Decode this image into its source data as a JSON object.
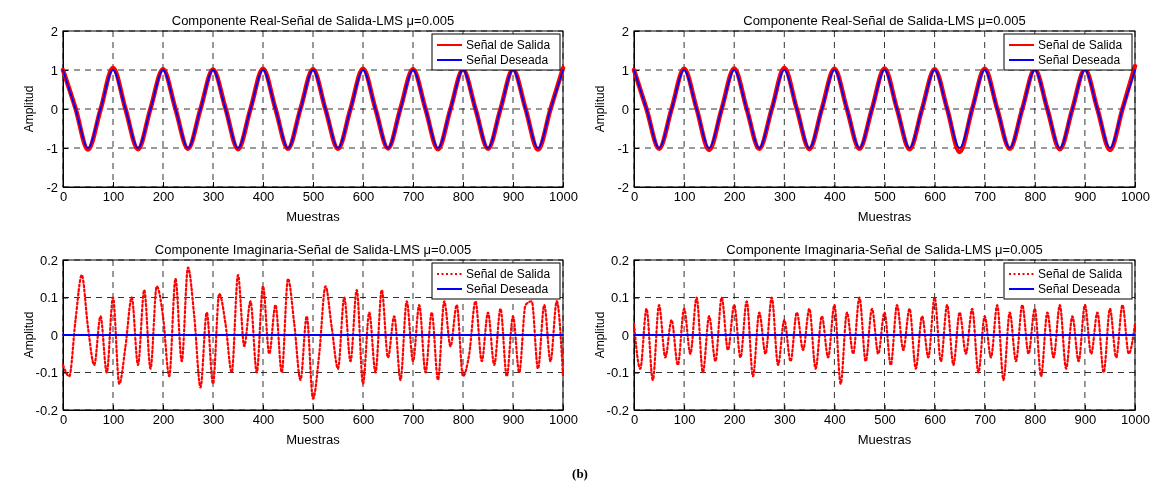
{
  "chart_data": [
    {
      "type": "line",
      "title": "Componente Real-Señal de Salida-LMS μ=0.005",
      "xlabel": "Muestras",
      "ylabel": "Amplitud",
      "xlim": [
        0,
        1000
      ],
      "xticks": [
        0,
        100,
        200,
        300,
        400,
        500,
        600,
        700,
        800,
        900,
        1000
      ],
      "ylim": [
        -2,
        2
      ],
      "yticks": [
        -2,
        -1,
        0,
        1,
        2
      ],
      "grid": true,
      "legend": "top right",
      "x": [
        0,
        25,
        50,
        75,
        100,
        125,
        150,
        175,
        200,
        225,
        250,
        275,
        300,
        325,
        350,
        375,
        400,
        425,
        450,
        475,
        500,
        525,
        550,
        575,
        600,
        625,
        650,
        675,
        700,
        725,
        750,
        775,
        800,
        825,
        850,
        875,
        900,
        925,
        950,
        975,
        1000
      ],
      "series": [
        {
          "name": "Señal de Salida",
          "color": "#ff0000",
          "line_style": "solid",
          "values": [
            1,
            0.02,
            -1.04,
            -0.02,
            1.05,
            0,
            -1.03,
            0.01,
            1.02,
            0,
            -1.02,
            0,
            1.01,
            0.02,
            -1.03,
            0,
            1.03,
            0,
            -1.02,
            0.01,
            1.02,
            -0.01,
            -1.02,
            0,
            1.03,
            0,
            -1.01,
            0.02,
            1.02,
            0,
            -1.03,
            0,
            1.01,
            0,
            -1.02,
            0,
            1.02,
            0.01,
            -1.04,
            0,
            1.05
          ]
        },
        {
          "name": "Señal Deseada",
          "color": "#0000ff",
          "line_style": "solid",
          "values": [
            1,
            0,
            -1,
            0,
            1,
            0,
            -1,
            0,
            1,
            0,
            -1,
            0,
            1,
            0,
            -1,
            0,
            1,
            0,
            -1,
            0,
            1,
            0,
            -1,
            0,
            1,
            0,
            -1,
            0,
            1,
            0,
            -1,
            0,
            1,
            0,
            -1,
            0,
            1,
            0,
            -1,
            0,
            1
          ]
        }
      ]
    },
    {
      "type": "line",
      "title": "Componente Real-Señal de Salida-LMS μ=0.005",
      "xlabel": "Muestras",
      "ylabel": "Amplitud",
      "xlim": [
        0,
        1000
      ],
      "xticks": [
        0,
        100,
        200,
        300,
        400,
        500,
        600,
        700,
        800,
        900,
        1000
      ],
      "ylim": [
        -2,
        2
      ],
      "yticks": [
        -2,
        -1,
        0,
        1,
        2
      ],
      "grid": true,
      "legend": "top right",
      "x": [
        0,
        25,
        50,
        75,
        100,
        125,
        150,
        175,
        200,
        225,
        250,
        275,
        300,
        325,
        350,
        375,
        400,
        425,
        450,
        475,
        500,
        525,
        550,
        575,
        600,
        625,
        650,
        675,
        700,
        725,
        750,
        775,
        800,
        825,
        850,
        875,
        900,
        925,
        950,
        975,
        1000
      ],
      "series": [
        {
          "name": "Señal de Salida",
          "color": "#ff0000",
          "line_style": "solid",
          "values": [
            1,
            0,
            -1.02,
            0,
            1.03,
            0.01,
            -1.05,
            0,
            1.04,
            0,
            -1.02,
            0,
            1.05,
            0,
            -1.03,
            0.01,
            1.03,
            0,
            -1.02,
            0,
            1.04,
            0,
            -1.03,
            0,
            1.02,
            0.01,
            -1.1,
            0,
            1.03,
            0,
            -1.02,
            0,
            1.02,
            0,
            -1.03,
            0,
            1.02,
            0,
            -1.05,
            0,
            1.1
          ]
        },
        {
          "name": "Señal Deseada",
          "color": "#0000ff",
          "line_style": "solid",
          "values": [
            1,
            0,
            -1,
            0,
            1,
            0,
            -1,
            0,
            1,
            0,
            -1,
            0,
            1,
            0,
            -1,
            0,
            1,
            0,
            -1,
            0,
            1,
            0,
            -1,
            0,
            1,
            0,
            -1,
            0,
            1,
            0,
            -1,
            0,
            1,
            0,
            -1,
            0,
            1,
            0,
            -1,
            0,
            1
          ]
        }
      ]
    },
    {
      "type": "line",
      "title": "Componente Imaginaria-Señal de Salida-LMS μ=0.005",
      "xlabel": "Muestras",
      "ylabel": "Amplitud",
      "xlim": [
        0,
        1000
      ],
      "xticks": [
        0,
        100,
        200,
        300,
        400,
        500,
        600,
        700,
        800,
        900,
        1000
      ],
      "ylim": [
        -0.2,
        0.2
      ],
      "yticks": [
        -0.2,
        -0.1,
        0,
        0.1,
        0.2
      ],
      "grid": true,
      "legend": "top right",
      "annotations": [
        "(b)"
      ],
      "x": [
        0,
        12.5,
        25,
        37.5,
        50,
        62.5,
        75,
        87.5,
        100,
        112.5,
        125,
        137.5,
        150,
        162.5,
        175,
        187.5,
        200,
        212.5,
        225,
        237.5,
        250,
        262.5,
        275,
        287.5,
        300,
        312.5,
        325,
        337.5,
        350,
        362.5,
        375,
        387.5,
        400,
        412.5,
        425,
        437.5,
        450,
        462.5,
        475,
        487.5,
        500,
        512.5,
        525,
        537.5,
        550,
        562.5,
        575,
        587.5,
        600,
        612.5,
        625,
        637.5,
        650,
        662.5,
        675,
        687.5,
        700,
        712.5,
        725,
        737.5,
        750,
        762.5,
        775,
        787.5,
        800,
        812.5,
        825,
        837.5,
        850,
        862.5,
        875,
        887.5,
        900,
        912.5,
        925,
        937.5,
        950,
        962.5,
        975,
        987.5,
        1000
      ],
      "series": [
        {
          "name": "Señal de Salida",
          "color": "#ff0000",
          "line_style": "dotted",
          "values": [
            -0.08,
            -0.11,
            0.04,
            0.16,
            0.02,
            -0.08,
            0.05,
            -0.1,
            0.1,
            -0.13,
            -0.03,
            0.1,
            -0.08,
            0.12,
            -0.09,
            0.13,
            0.05,
            -0.11,
            0.15,
            -0.07,
            0.18,
            0.05,
            -0.14,
            0.06,
            -0.13,
            0.11,
            0.03,
            -0.1,
            0.16,
            -0.03,
            0.09,
            -0.1,
            0.13,
            -0.05,
            0.08,
            -0.1,
            0.15,
            0.03,
            -0.12,
            0.05,
            -0.17,
            -0.05,
            0.13,
            0.02,
            -0.09,
            0.1,
            -0.07,
            0.12,
            -0.13,
            0.06,
            -0.1,
            0.12,
            -0.06,
            0.05,
            -0.12,
            0.09,
            -0.07,
            0.08,
            -0.1,
            0.06,
            -0.12,
            0.09,
            -0.03,
            0.08,
            -0.11,
            -0.05,
            0.09,
            -0.07,
            0.06,
            -0.08,
            0.07,
            -0.11,
            0.05,
            -0.1,
            0.08,
            0.09,
            -0.09,
            0.08,
            -0.07,
            0.09,
            -0.11
          ]
        },
        {
          "name": "Señal Deseada",
          "color": "#0000ff",
          "line_style": "solid",
          "values": [
            0,
            0,
            0,
            0,
            0,
            0,
            0,
            0,
            0,
            0,
            0,
            0,
            0,
            0,
            0,
            0,
            0,
            0,
            0,
            0,
            0,
            0,
            0,
            0,
            0,
            0,
            0,
            0,
            0,
            0,
            0,
            0,
            0,
            0,
            0,
            0,
            0,
            0,
            0,
            0,
            0,
            0,
            0,
            0,
            0,
            0,
            0,
            0,
            0,
            0,
            0,
            0,
            0,
            0,
            0,
            0,
            0,
            0,
            0,
            0,
            0,
            0,
            0,
            0,
            0,
            0,
            0,
            0,
            0,
            0,
            0,
            0,
            0,
            0,
            0,
            0,
            0,
            0,
            0,
            0,
            0
          ]
        }
      ]
    },
    {
      "type": "line",
      "title": "Componente Imaginaria-Señal de Salida-LMS μ=0.005",
      "xlabel": "Muestras",
      "ylabel": "Amplitud",
      "xlim": [
        0,
        1000
      ],
      "xticks": [
        0,
        100,
        200,
        300,
        400,
        500,
        600,
        700,
        800,
        900,
        1000
      ],
      "ylim": [
        -0.2,
        0.2
      ],
      "yticks": [
        -0.2,
        -0.1,
        0,
        0.1,
        0.2
      ],
      "grid": true,
      "legend": "top right",
      "x": [
        0,
        12.5,
        25,
        37.5,
        50,
        62.5,
        75,
        87.5,
        100,
        112.5,
        125,
        137.5,
        150,
        162.5,
        175,
        187.5,
        200,
        212.5,
        225,
        237.5,
        250,
        262.5,
        275,
        287.5,
        300,
        312.5,
        325,
        337.5,
        350,
        362.5,
        375,
        387.5,
        400,
        412.5,
        425,
        437.5,
        450,
        462.5,
        475,
        487.5,
        500,
        512.5,
        525,
        537.5,
        550,
        562.5,
        575,
        587.5,
        600,
        612.5,
        625,
        637.5,
        650,
        662.5,
        675,
        687.5,
        700,
        712.5,
        725,
        737.5,
        750,
        762.5,
        775,
        787.5,
        800,
        812.5,
        825,
        837.5,
        850,
        862.5,
        875,
        887.5,
        900,
        912.5,
        925,
        937.5,
        950,
        962.5,
        975,
        987.5,
        1000
      ],
      "series": [
        {
          "name": "Señal de Salida",
          "color": "#ff0000",
          "line_style": "dotted",
          "values": [
            0.03,
            -0.09,
            0.07,
            -0.12,
            0.08,
            -0.06,
            0.04,
            -0.08,
            0.07,
            -0.05,
            0.1,
            -0.1,
            0.05,
            -0.07,
            0.1,
            -0.04,
            0.08,
            -0.06,
            0.09,
            -0.11,
            0.06,
            -0.05,
            0.1,
            -0.08,
            0.04,
            -0.07,
            0.06,
            -0.04,
            0.07,
            -0.09,
            0.05,
            -0.06,
            0.08,
            -0.13,
            0.06,
            -0.05,
            0.1,
            -0.07,
            0.07,
            -0.05,
            0.06,
            -0.08,
            0.08,
            -0.04,
            0.07,
            -0.09,
            0.05,
            -0.06,
            0.1,
            -0.07,
            0.08,
            -0.08,
            0.06,
            -0.05,
            0.07,
            -0.1,
            0.05,
            -0.06,
            0.08,
            -0.12,
            0.06,
            -0.07,
            0.08,
            -0.05,
            0.07,
            -0.11,
            0.06,
            -0.06,
            0.08,
            -0.09,
            0.05,
            -0.07,
            0.08,
            -0.05,
            0.06,
            -0.1,
            0.07,
            -0.06,
            0.08,
            -0.05,
            0.03
          ]
        },
        {
          "name": "Señal Deseada",
          "color": "#0000ff",
          "line_style": "solid",
          "values": [
            0,
            0,
            0,
            0,
            0,
            0,
            0,
            0,
            0,
            0,
            0,
            0,
            0,
            0,
            0,
            0,
            0,
            0,
            0,
            0,
            0,
            0,
            0,
            0,
            0,
            0,
            0,
            0,
            0,
            0,
            0,
            0,
            0,
            0,
            0,
            0,
            0,
            0,
            0,
            0,
            0,
            0,
            0,
            0,
            0,
            0,
            0,
            0,
            0,
            0,
            0,
            0,
            0,
            0,
            0,
            0,
            0,
            0,
            0,
            0,
            0,
            0,
            0,
            0,
            0,
            0,
            0,
            0,
            0,
            0,
            0,
            0,
            0,
            0,
            0,
            0,
            0,
            0,
            0,
            0,
            0
          ]
        }
      ]
    }
  ]
}
